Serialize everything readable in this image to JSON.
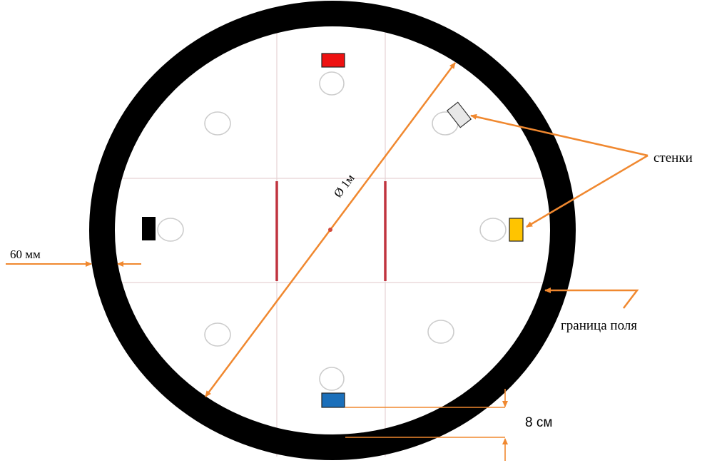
{
  "labels": {
    "diameter": "Ø 1м",
    "border_width": "60 мм",
    "walls": "стенки",
    "field_border": "граница поля",
    "offset": "8 см"
  },
  "colors": {
    "ring": "#000000",
    "grid": "#e6d2d4",
    "center_lines": "#c0343f",
    "annotation": "#f0882f",
    "circle_outline": "#cccccc",
    "block_top": "#ee1111",
    "block_bottom": "#1b6fba",
    "block_left": "#000000",
    "block_right": "#ffc400",
    "block_wall_grey": "#e8e8e8"
  },
  "markers": [
    {
      "name": "block-top",
      "color": "red"
    },
    {
      "name": "block-bottom",
      "color": "blue"
    },
    {
      "name": "block-left",
      "color": "black"
    },
    {
      "name": "block-right",
      "color": "yellow"
    },
    {
      "name": "wall-block",
      "color": "light-grey"
    }
  ]
}
